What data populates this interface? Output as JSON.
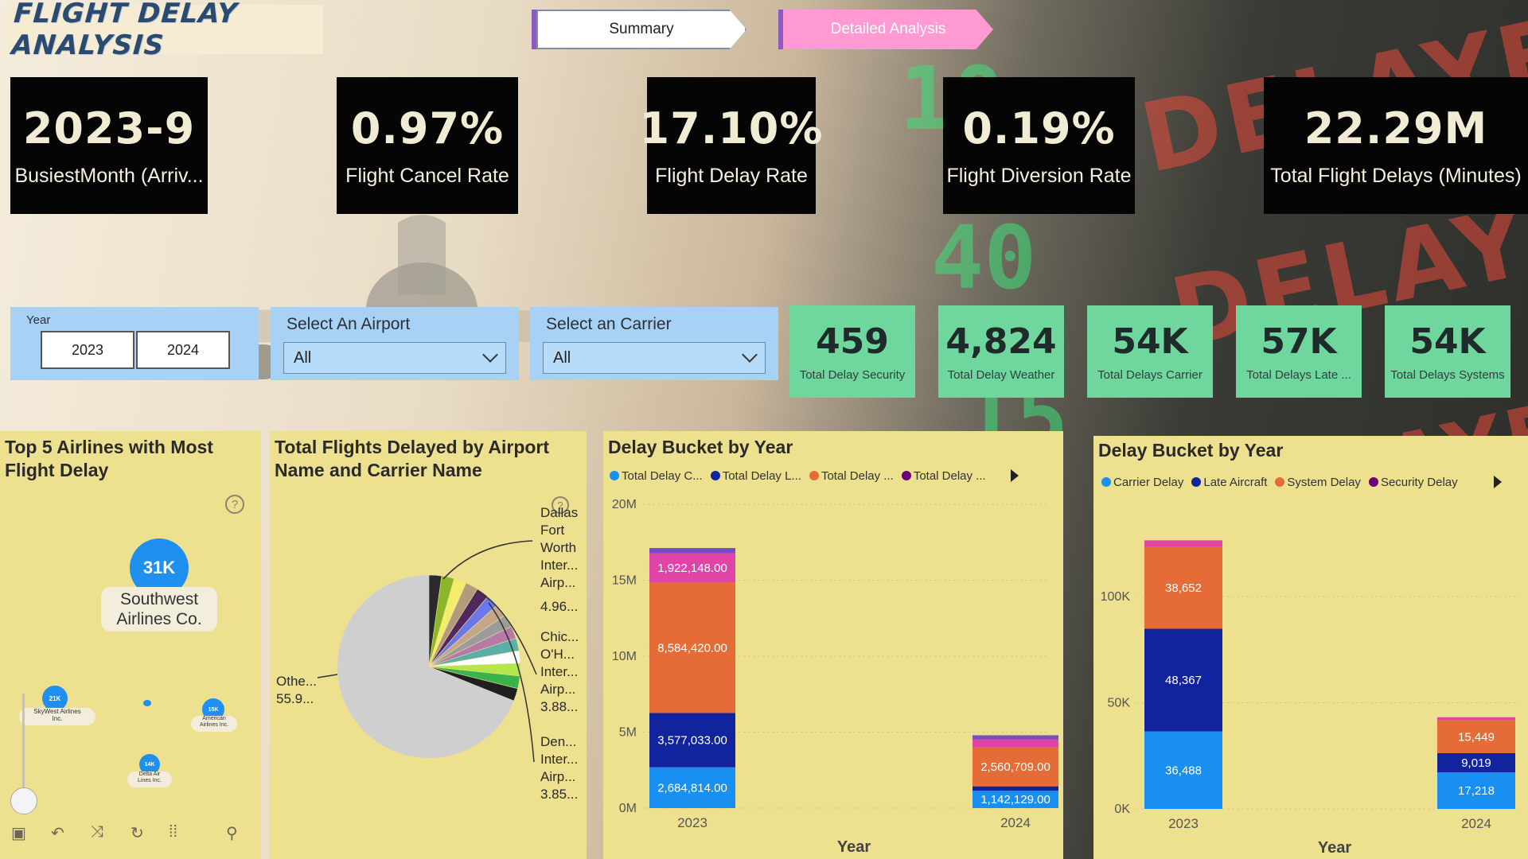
{
  "header": {
    "title": "FLIGHT DELAY ANALYSIS",
    "nav": {
      "summary_label": "Summary",
      "detail_label": "Detailed Analysis"
    }
  },
  "kpis": [
    {
      "value": "2023-9",
      "label": "BusiestMonth (Arriv..."
    },
    {
      "value": "0.97%",
      "label": "Flight Cancel Rate"
    },
    {
      "value": "17.10%",
      "label": "Flight Delay Rate"
    },
    {
      "value": "0.19%",
      "label": "Flight Diversion Rate"
    },
    {
      "value": "22.29M",
      "label": "Total Flight Delays (Minutes)"
    }
  ],
  "slicers": {
    "year": {
      "title": "Year",
      "options": [
        "2023",
        "2024"
      ]
    },
    "airport": {
      "title": "Select An Airport",
      "value": "All"
    },
    "carrier": {
      "title": "Select an Carrier",
      "value": "All"
    }
  },
  "delay_cards": [
    {
      "value": "459",
      "label": "Total Delay Security"
    },
    {
      "value": "4,824",
      "label": "Total Delay Weather"
    },
    {
      "value": "54K",
      "label": "Total Delays Carrier"
    },
    {
      "value": "57K",
      "label": "Total Delays Late ..."
    },
    {
      "value": "54K",
      "label": "Total Delays Systems"
    }
  ],
  "top_airlines": {
    "title_line1": "Top 5 Airlines with Most",
    "title_line2": "Flight Delay",
    "main_bubble": {
      "value": "31K",
      "label_line1": "Southwest",
      "label_line2": "Airlines Co."
    },
    "small_bubbles": [
      {
        "value": "21K",
        "label_line1": "SkyWest Airlines",
        "label_line2": "Inc."
      },
      {
        "value": "15K",
        "label_line1": "American",
        "label_line2": "Airlines Inc."
      },
      {
        "value": "14K",
        "label_line1": "Delta Air",
        "label_line2": "Lines Inc."
      }
    ],
    "help_icon": "?",
    "toolbar_icons": [
      "image-icon",
      "undo-icon",
      "shuffle-icon",
      "refresh-icon",
      "grid-icon",
      "search-icon"
    ]
  },
  "airport_pie": {
    "title_line1": "Total Flights Delayed by Airport",
    "title_line2": "Name and Carrier Name",
    "labels": {
      "dfw": [
        "Dallas",
        "Fort",
        "Worth",
        "Inter...",
        "Airp...",
        "4.96..."
      ],
      "ord": [
        "Chic...",
        "O'H...",
        "Inter...",
        "Airp...",
        "3.88..."
      ],
      "den": [
        "Den...",
        "Inter...",
        "Airp...",
        "3.85..."
      ],
      "other": [
        "Othe...",
        "55.9..."
      ]
    }
  },
  "chart_data": [
    {
      "type": "bar",
      "stacked": true,
      "title": "Delay Bucket by Year",
      "xlabel": "Year",
      "categories": [
        "2023",
        "2024"
      ],
      "y_ticks": [
        "0M",
        "5M",
        "10M",
        "15M",
        "20M"
      ],
      "ylim": [
        0,
        20000000
      ],
      "legend": [
        "Total Delay C...",
        "Total Delay L...",
        "Total Delay ...",
        "Total Delay ..."
      ],
      "legend_colors": [
        "#1a8ff2",
        "#12239e",
        "#e66c37",
        "#6b007b"
      ],
      "series": [
        {
          "values": [
            2684814,
            1142129
          ],
          "labels": [
            "2,684,814.00",
            "1,142,129.00"
          ],
          "color": "#1a8ff2"
        },
        {
          "values": [
            3577033,
            290000
          ],
          "labels": [
            "3,577,033.00",
            ""
          ],
          "color": "#12239e"
        },
        {
          "values": [
            8584420,
            2560709
          ],
          "labels": [
            "8,584,420.00",
            "2,560,709.00"
          ],
          "color": "#e66c37"
        },
        {
          "values": [
            1922148,
            520000
          ],
          "labels": [
            "1,922,148.00",
            ""
          ],
          "color": "#e044a7"
        },
        {
          "values": [
            350000,
            280000
          ],
          "labels": [
            "",
            ""
          ],
          "color": "#744ec2"
        }
      ]
    },
    {
      "type": "bar",
      "stacked": true,
      "title": "Delay Bucket by Year",
      "xlabel": "Year",
      "categories": [
        "2023",
        "2024"
      ],
      "y_ticks": [
        "0K",
        "50K",
        "100K"
      ],
      "ylim": [
        0,
        142000
      ],
      "legend": [
        "Carrier Delay",
        "Late Aircraft",
        "System Delay",
        "Security Delay"
      ],
      "legend_colors": [
        "#1a8ff2",
        "#12239e",
        "#e66c37",
        "#6b007b"
      ],
      "series": [
        {
          "values": [
            36488,
            17218
          ],
          "labels": [
            "36,488",
            "17,218"
          ],
          "color": "#1a8ff2"
        },
        {
          "values": [
            48367,
            9019
          ],
          "labels": [
            "48,367",
            "9,019"
          ],
          "color": "#12239e"
        },
        {
          "values": [
            38652,
            15449
          ],
          "labels": [
            "38,652",
            "15,449"
          ],
          "color": "#e66c37"
        },
        {
          "values": [
            3000,
            1500
          ],
          "labels": [
            "",
            ""
          ],
          "color": "#e044a7"
        }
      ]
    }
  ],
  "background": {
    "words": [
      "DELAYED",
      "DELAY",
      "DELAYED"
    ],
    "digits": [
      "10:",
      "40",
      "15"
    ]
  }
}
